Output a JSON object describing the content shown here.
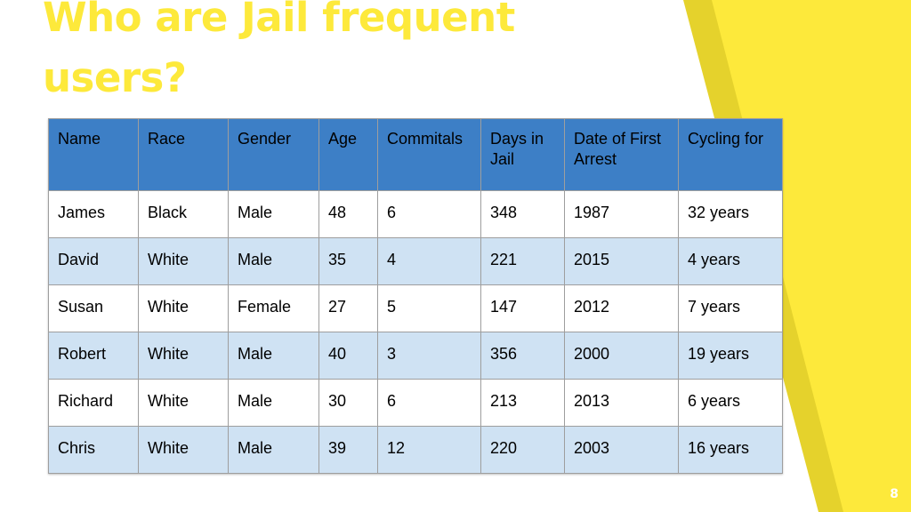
{
  "colors": {
    "accent_yellow": "#fde93b",
    "dark_yellow": "#e5d22c",
    "header_blue": "#3d7fc6",
    "row_light_blue": "#cfe2f3",
    "row_white": "#ffffff"
  },
  "slide": {
    "title_line1": "Who are Jail frequent",
    "title_line2": "users?",
    "page_number": "8"
  },
  "table": {
    "headers": [
      "Name",
      "Race",
      "Gender",
      "Age",
      "Commitals",
      "Days in Jail",
      "Date of First Arrest",
      "Cycling for"
    ],
    "rows": [
      [
        "James",
        "Black",
        "Male",
        "48",
        "6",
        "348",
        "1987",
        "32 years"
      ],
      [
        "David",
        "White",
        "Male",
        "35",
        "4",
        "221",
        "2015",
        "4 years"
      ],
      [
        "Susan",
        "White",
        "Female",
        "27",
        "5",
        "147",
        "2012",
        "7 years"
      ],
      [
        "Robert",
        "White",
        "Male",
        "40",
        "3",
        "356",
        "2000",
        "19 years"
      ],
      [
        "Richard",
        "White",
        "Male",
        "30",
        "6",
        "213",
        "2013",
        "6 years"
      ],
      [
        "Chris",
        "White",
        "Male",
        "39",
        "12",
        "220",
        "2003",
        "16 years"
      ]
    ]
  }
}
